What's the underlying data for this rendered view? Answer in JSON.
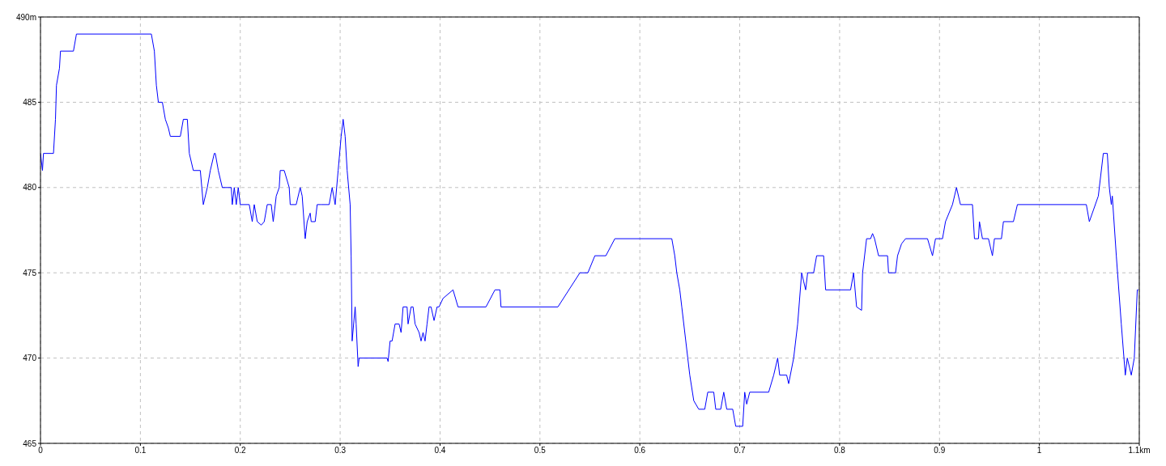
{
  "chart_data": {
    "type": "line",
    "x": [
      0,
      0.002,
      0.003,
      0.013,
      0.015,
      0.016,
      0.019,
      0.02,
      0.033,
      0.036,
      0.111,
      0.114,
      0.116,
      0.118,
      0.122,
      0.125,
      0.128,
      0.13,
      0.14,
      0.143,
      0.147,
      0.149,
      0.153,
      0.16,
      0.163,
      0.167,
      0.17,
      0.174,
      0.175,
      0.178,
      0.182,
      0.191,
      0.192,
      0.194,
      0.196,
      0.198,
      0.2,
      0.209,
      0.212,
      0.214,
      0.217,
      0.221,
      0.224,
      0.227,
      0.231,
      0.233,
      0.236,
      0.239,
      0.24,
      0.244,
      0.249,
      0.25,
      0.256,
      0.26,
      0.262,
      0.265,
      0.267,
      0.27,
      0.271,
      0.275,
      0.277,
      0.281,
      0.289,
      0.292,
      0.295,
      0.298,
      0.301,
      0.303,
      0.305,
      0.307,
      0.31,
      0.311,
      0.312,
      0.315,
      0.316,
      0.318,
      0.319,
      0.347,
      0.348,
      0.35,
      0.352,
      0.355,
      0.359,
      0.361,
      0.363,
      0.367,
      0.368,
      0.371,
      0.373,
      0.375,
      0.379,
      0.381,
      0.383,
      0.385,
      0.387,
      0.389,
      0.391,
      0.394,
      0.397,
      0.399,
      0.403,
      0.413,
      0.418,
      0.446,
      0.455,
      0.46,
      0.461,
      0.518,
      0.54,
      0.548,
      0.555,
      0.566,
      0.575,
      0.632,
      0.635,
      0.637,
      0.64,
      0.642,
      0.648,
      0.65,
      0.654,
      0.659,
      0.665,
      0.668,
      0.674,
      0.676,
      0.681,
      0.684,
      0.687,
      0.693,
      0.696,
      0.703,
      0.705,
      0.707,
      0.71,
      0.729,
      0.734,
      0.738,
      0.74,
      0.747,
      0.749,
      0.754,
      0.758,
      0.762,
      0.764,
      0.766,
      0.768,
      0.774,
      0.777,
      0.784,
      0.786,
      0.811,
      0.814,
      0.817,
      0.822,
      0.823,
      0.827,
      0.831,
      0.833,
      0.835,
      0.839,
      0.848,
      0.849,
      0.856,
      0.858,
      0.862,
      0.866,
      0.888,
      0.893,
      0.896,
      0.903,
      0.906,
      0.913,
      0.917,
      0.921,
      0.933,
      0.935,
      0.939,
      0.94,
      0.943,
      0.949,
      0.953,
      0.955,
      0.962,
      0.964,
      0.974,
      0.978,
      1.047,
      1.05,
      1.059,
      1.064,
      1.068,
      1.07,
      1.072,
      1.073,
      1.077,
      1.082,
      1.086,
      1.088,
      1.092,
      1.095,
      1.098,
      1.099
    ],
    "series": [
      {
        "color": "#0000ff",
        "values": [
          482,
          481,
          482,
          482,
          484,
          486,
          487,
          488,
          488,
          489,
          489,
          488,
          486,
          485,
          485,
          484,
          483.5,
          483,
          483,
          484,
          484,
          482,
          481,
          481,
          479,
          480,
          481,
          482,
          482,
          481,
          480,
          480,
          479,
          480,
          479,
          480,
          479,
          479,
          478,
          479,
          478,
          477.8,
          478,
          479,
          479,
          478,
          479.5,
          480,
          481,
          481,
          480,
          479,
          479,
          480,
          479.5,
          477,
          478,
          478.5,
          478,
          478,
          479,
          479,
          479,
          480,
          479,
          481,
          483,
          484,
          483,
          481,
          479,
          476,
          471,
          473,
          472,
          469.5,
          470,
          470,
          469.8,
          471,
          471,
          472,
          472,
          471.5,
          473,
          473,
          472,
          473,
          473,
          472,
          471.5,
          471,
          471.5,
          471,
          472,
          473,
          473,
          472.2,
          473,
          473,
          473.5,
          474,
          473,
          473,
          474,
          474,
          473,
          473,
          475,
          475,
          476,
          476,
          477,
          477,
          476,
          475,
          474,
          473,
          470,
          469,
          467.5,
          467,
          467,
          468,
          468,
          467,
          467,
          468,
          467,
          467,
          466,
          466,
          468,
          467.3,
          468,
          468,
          469,
          470,
          469,
          469,
          468.5,
          470,
          472,
          475,
          474.5,
          474,
          475,
          475,
          476,
          476,
          474,
          474,
          475,
          473,
          472.8,
          475,
          477,
          477,
          477.3,
          477,
          476,
          476,
          475,
          475,
          476,
          476.7,
          477,
          477,
          476,
          477,
          477,
          478,
          479,
          480,
          479,
          479,
          477,
          477,
          478,
          477,
          477,
          476,
          477,
          477,
          478,
          478,
          479,
          479,
          478,
          479.5,
          482,
          482,
          480,
          479,
          479.5,
          476,
          472,
          469,
          470,
          469,
          470,
          474,
          474
        ]
      }
    ],
    "xlim": [
      0,
      1.1
    ],
    "ylim": [
      465,
      490
    ],
    "xticks": [
      0,
      0.1,
      0.2,
      0.3,
      0.4,
      0.5,
      0.6,
      0.7,
      0.8,
      0.9,
      1,
      {
        "value": 1.1,
        "label": "1.1km"
      }
    ],
    "yticks": [
      465,
      470,
      475,
      480,
      485,
      {
        "value": 490,
        "label": "490m"
      }
    ],
    "grid": true,
    "marker": "none",
    "line_style": "solid",
    "legend": false
  }
}
